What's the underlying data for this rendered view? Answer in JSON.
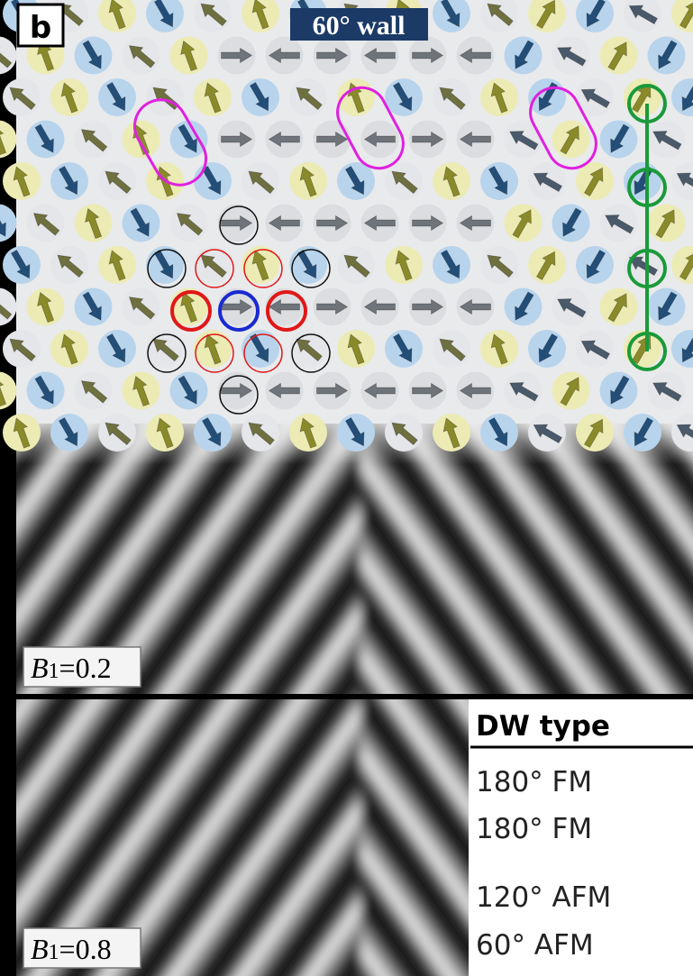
{
  "panel_label": "b",
  "wall_label": "60° wall",
  "insets": [
    {
      "symbol": "B",
      "subscript": "1",
      "value": "=0.2"
    },
    {
      "symbol": "B",
      "subscript": "1",
      "value": "=0.8"
    }
  ],
  "table": {
    "header": "DW type",
    "rows": [
      "180° FM",
      "180° FM",
      "120° AFM",
      "60° AFM"
    ]
  }
}
